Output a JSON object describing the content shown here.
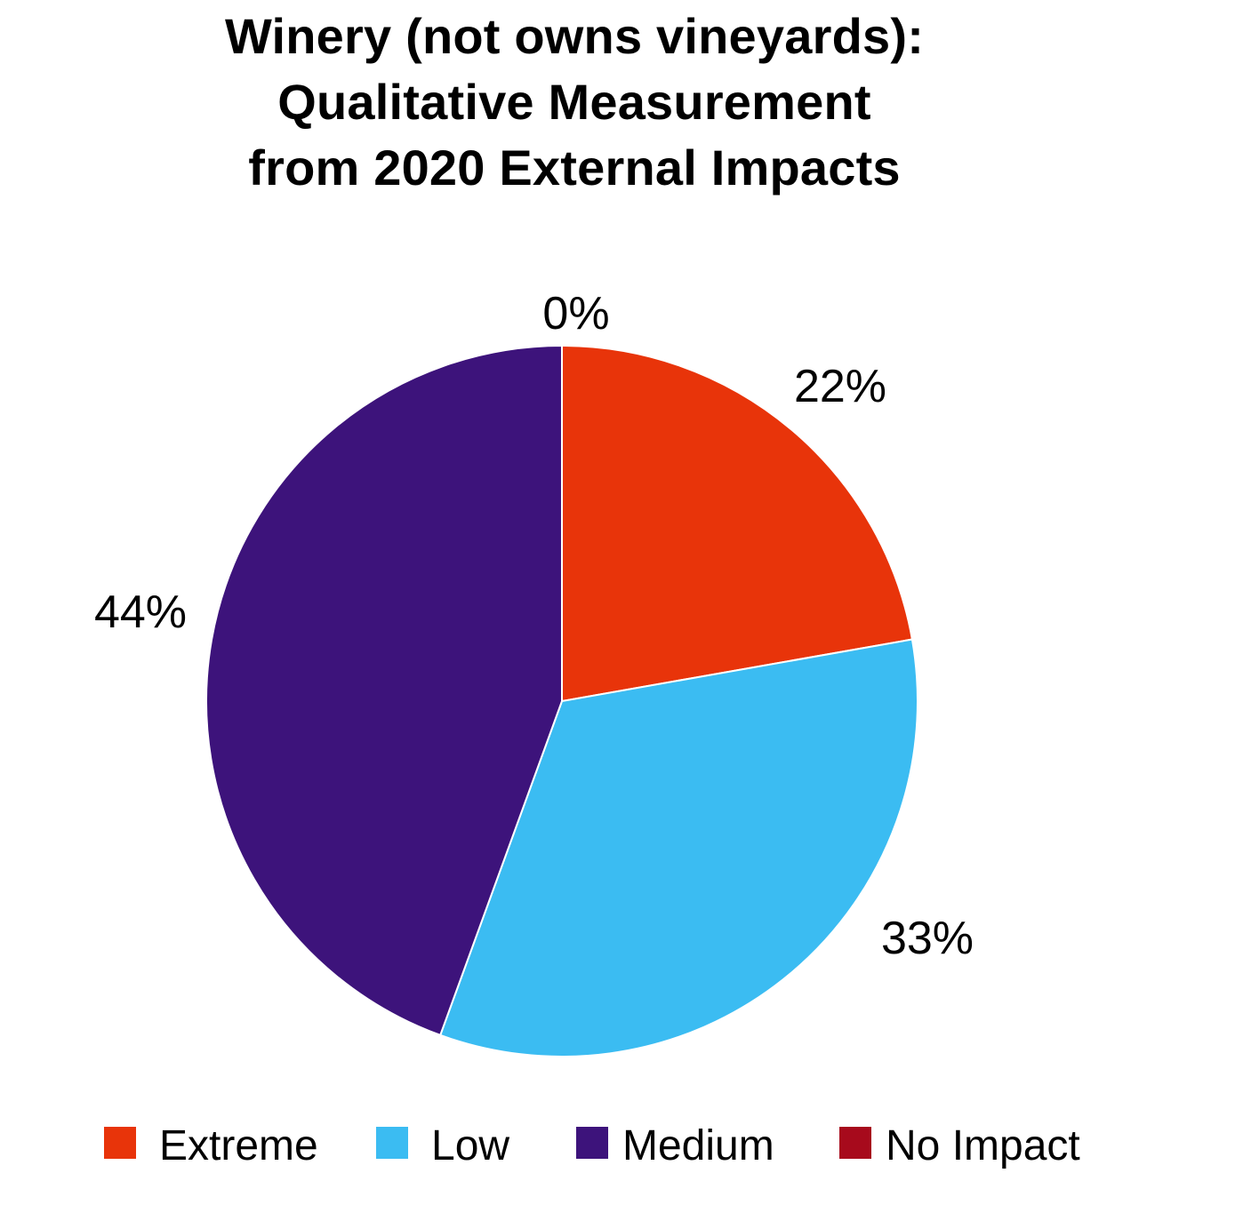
{
  "chart_data": {
    "type": "pie",
    "title_lines": [
      "Winery (not owns vineyards):",
      "Qualitative Measurement",
      "from 2020 External Impacts"
    ],
    "categories": [
      "Extreme",
      "Low",
      "Medium",
      "No Impact"
    ],
    "values": [
      22,
      33,
      44,
      0
    ],
    "labels": [
      "22%",
      "33%",
      "44%",
      "0%"
    ],
    "colors": [
      "#e8340a",
      "#3bbcf2",
      "#3d137b",
      "#a70a1c"
    ],
    "legend_position": "bottom",
    "start_angle": "12 o'clock",
    "direction": "clockwise"
  }
}
